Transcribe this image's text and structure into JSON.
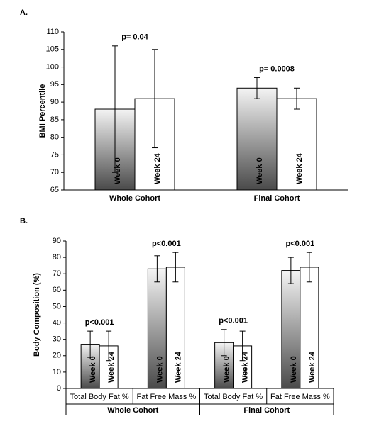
{
  "chart_data": [
    {
      "type": "bar",
      "panel_label": "A.",
      "y_label": "BMI Percentile",
      "categories": [
        "Whole Cohort",
        "Final Cohort"
      ],
      "series": [
        {
          "name": "Week 0",
          "color": "#555555",
          "values": [
            88,
            94
          ],
          "errors": [
            18,
            3
          ]
        },
        {
          "name": "Week 24",
          "color": "#ffffff",
          "values": [
            91,
            91
          ],
          "errors": [
            14,
            3
          ]
        }
      ],
      "annotations": [
        "p= 0.04",
        "p= 0.0008"
      ],
      "ylim": [
        65,
        110
      ],
      "yticks": [
        65,
        70,
        75,
        80,
        85,
        90,
        95,
        100,
        105,
        110
      ]
    },
    {
      "type": "bar",
      "panel_label": "B.",
      "y_label": "Body Composition (%)",
      "categories": [
        "Total Body Fat %",
        "Fat Free Mass %",
        "Total Body Fat %",
        "Fat Free Mass %"
      ],
      "groups": [
        "Whole Cohort",
        "Final Cohort"
      ],
      "series": [
        {
          "name": "Week 0",
          "color": "#555555",
          "values": [
            27,
            73,
            28,
            72
          ],
          "errors": [
            8,
            8,
            8,
            8
          ]
        },
        {
          "name": "Week 24",
          "color": "#ffffff",
          "values": [
            26,
            74,
            26,
            74
          ],
          "errors": [
            9,
            9,
            9,
            9
          ]
        }
      ],
      "annotations": [
        "p<0.001",
        "p<0.001",
        "p<0.001",
        "p<0.001"
      ],
      "ylim": [
        0,
        90
      ],
      "yticks": [
        0,
        10,
        20,
        30,
        40,
        50,
        60,
        70,
        80,
        90
      ]
    }
  ]
}
